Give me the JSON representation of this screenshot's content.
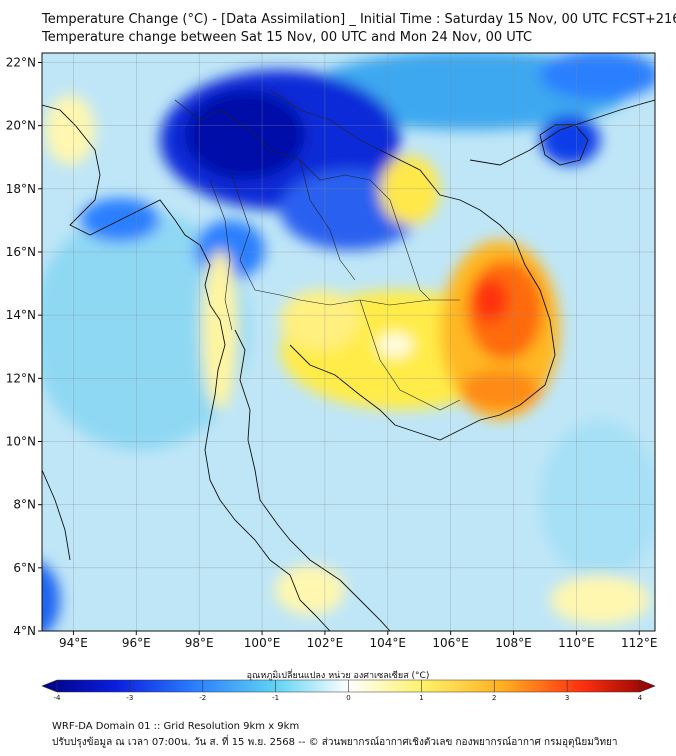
{
  "title": "Temperature Change (°C) - [Data Assimilation] _ Initial Time : Saturday 15 Nov, 00 UTC FCST+216",
  "subtitle": "Temperature change between Sat 15 Nov, 00 UTC and Mon 24 Nov, 00 UTC",
  "map": {
    "lon_range": [
      93,
      112.5
    ],
    "lat_range": [
      4,
      22.3
    ],
    "lon_ticks": [
      "94°E",
      "96°E",
      "98°E",
      "100°E",
      "102°E",
      "104°E",
      "106°E",
      "108°E",
      "110°E",
      "112°E"
    ],
    "lat_ticks": [
      "4°N",
      "6°N",
      "8°N",
      "10°N",
      "12°N",
      "14°N",
      "16°N",
      "18°N",
      "20°N",
      "22°N"
    ],
    "grid": true,
    "background_color": "#bfe6f7"
  },
  "colorbar": {
    "title": "อุณหภูมิเปลี่ยนแปลง หน่วย องศาเซลเซียส (°C)",
    "tick_labels": [
      "-4",
      "-3",
      "-2",
      "-1",
      "0",
      "1",
      "2",
      "3",
      "4"
    ],
    "range": [
      -4,
      4
    ],
    "colors": {
      "min": "#000080",
      "neg_mid": "#2b7fff",
      "neg_light": "#5fd3f3",
      "zero": "#ffffff",
      "pos_light": "#fff26a",
      "pos_mid": "#ff8c1a",
      "max": "#8b0000"
    }
  },
  "footer": {
    "line1": "WRF-DA Domain 01 :: Grid Resolution 9km x 9km",
    "line2": "ปรับปรุงข้อมูล ณ เวลา 07:00น. วัน ส. ที่ 15 พ.ย. 2568 -- © ส่วนพยากรณ์อากาศเชิงตัวเลข กองพยากรณ์อากาศ กรมอุตุนิยมวิทยา"
  }
}
